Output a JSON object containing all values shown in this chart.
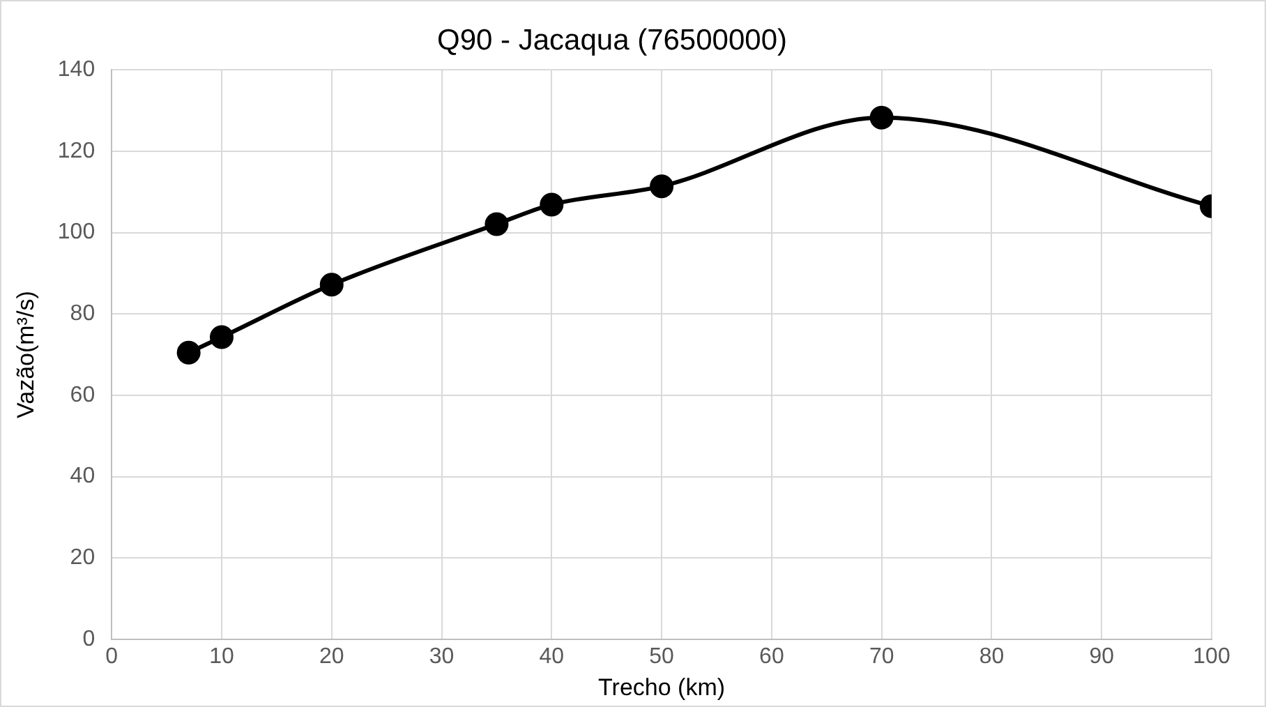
{
  "chart_data": {
    "type": "line",
    "title": "Q90 - Jacaqua (76500000)",
    "xlabel": "Trecho (km)",
    "ylabel": "Vazão(m³/s)",
    "x": [
      7,
      10,
      20,
      35,
      40,
      50,
      70,
      100
    ],
    "series": [
      {
        "color": "#000000",
        "values": [
          70.5,
          74.3,
          87.2,
          102.1,
          106.9,
          111.4,
          128.3,
          106.5
        ]
      }
    ],
    "xlim": [
      0,
      100
    ],
    "xticks": [
      0,
      10,
      20,
      30,
      40,
      50,
      60,
      70,
      80,
      90,
      100
    ],
    "ylim": [
      0,
      140
    ],
    "yticks": [
      0,
      20,
      40,
      60,
      80,
      100,
      120,
      140
    ],
    "grid": true,
    "legend": false,
    "marker": "circle",
    "line_style": "solid"
  }
}
